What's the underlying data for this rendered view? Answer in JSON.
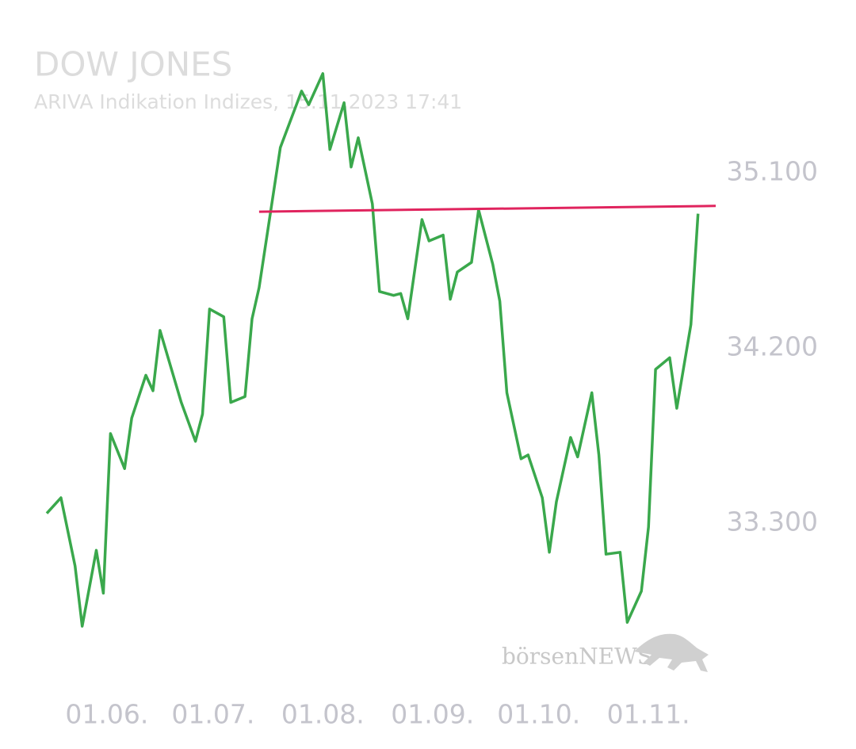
{
  "chart_data": {
    "type": "line",
    "title": "DOW JONES",
    "subtitle": "ARIVA Indikation Indizes, 15.11.2023 17:41",
    "watermark": "börsenNEWS",
    "color": "#3aa84c",
    "x": [
      "15.05.",
      "19.05.",
      "23.05.",
      "25.05.",
      "29.05.",
      "31.05.",
      "02.06.",
      "06.06.",
      "08.06.",
      "12.06.",
      "14.06.",
      "16.06.",
      "22.06.",
      "26.06.",
      "28.06.",
      "30.06.",
      "04.07.",
      "06.07.",
      "10.07.",
      "12.07.",
      "14.07.",
      "20.07.",
      "26.07.",
      "28.07.",
      "01.08.",
      "03.08.",
      "07.08.",
      "09.08.",
      "11.08.",
      "15.08.",
      "17.08.",
      "21.08.",
      "23.08.",
      "25.08.",
      "29.08.",
      "31.08.",
      "04.09.",
      "06.09.",
      "08.09.",
      "12.09.",
      "14.09.",
      "18.09.",
      "20.09.",
      "22.09.",
      "26.09.",
      "28.09.",
      "02.10.",
      "04.10.",
      "06.10.",
      "10.10.",
      "12.10.",
      "16.10.",
      "18.10.",
      "20.10.",
      "24.10.",
      "26.10.",
      "30.10.",
      "01.11.",
      "03.11.",
      "07.11.",
      "09.11.",
      "13.11.",
      "15.11."
    ],
    "values": [
      33350,
      33430,
      33080,
      32770,
      33160,
      32940,
      33760,
      33580,
      33840,
      34060,
      33980,
      34290,
      33920,
      33720,
      33860,
      34400,
      34360,
      33920,
      33950,
      34350,
      34510,
      35230,
      35520,
      35450,
      35610,
      35220,
      35460,
      35130,
      35280,
      34940,
      34490,
      34470,
      34480,
      34350,
      34860,
      34750,
      34780,
      34450,
      34590,
      34640,
      34910,
      34630,
      34440,
      33970,
      33630,
      33650,
      33430,
      33150,
      33410,
      33740,
      33640,
      33970,
      33650,
      33140,
      33150,
      32790,
      32950,
      33280,
      34090,
      34150,
      33890,
      34320,
      34890
    ],
    "reference_line": {
      "color": "#e0245e",
      "x": [
        "14.07.",
        "20.11."
      ],
      "values": [
        34900,
        34930
      ]
    },
    "xlim": [
      "15.05.",
      "20.11."
    ],
    "xticks": [
      "01.06.",
      "01.07.",
      "01.08.",
      "01.09.",
      "01.10.",
      "01.11."
    ],
    "ylim": [
      32750,
      35650
    ],
    "yticks": [
      {
        "value": 33300,
        "label": "33.300"
      },
      {
        "value": 34200,
        "label": "34.200"
      },
      {
        "value": 35100,
        "label": "35.100"
      }
    ]
  }
}
